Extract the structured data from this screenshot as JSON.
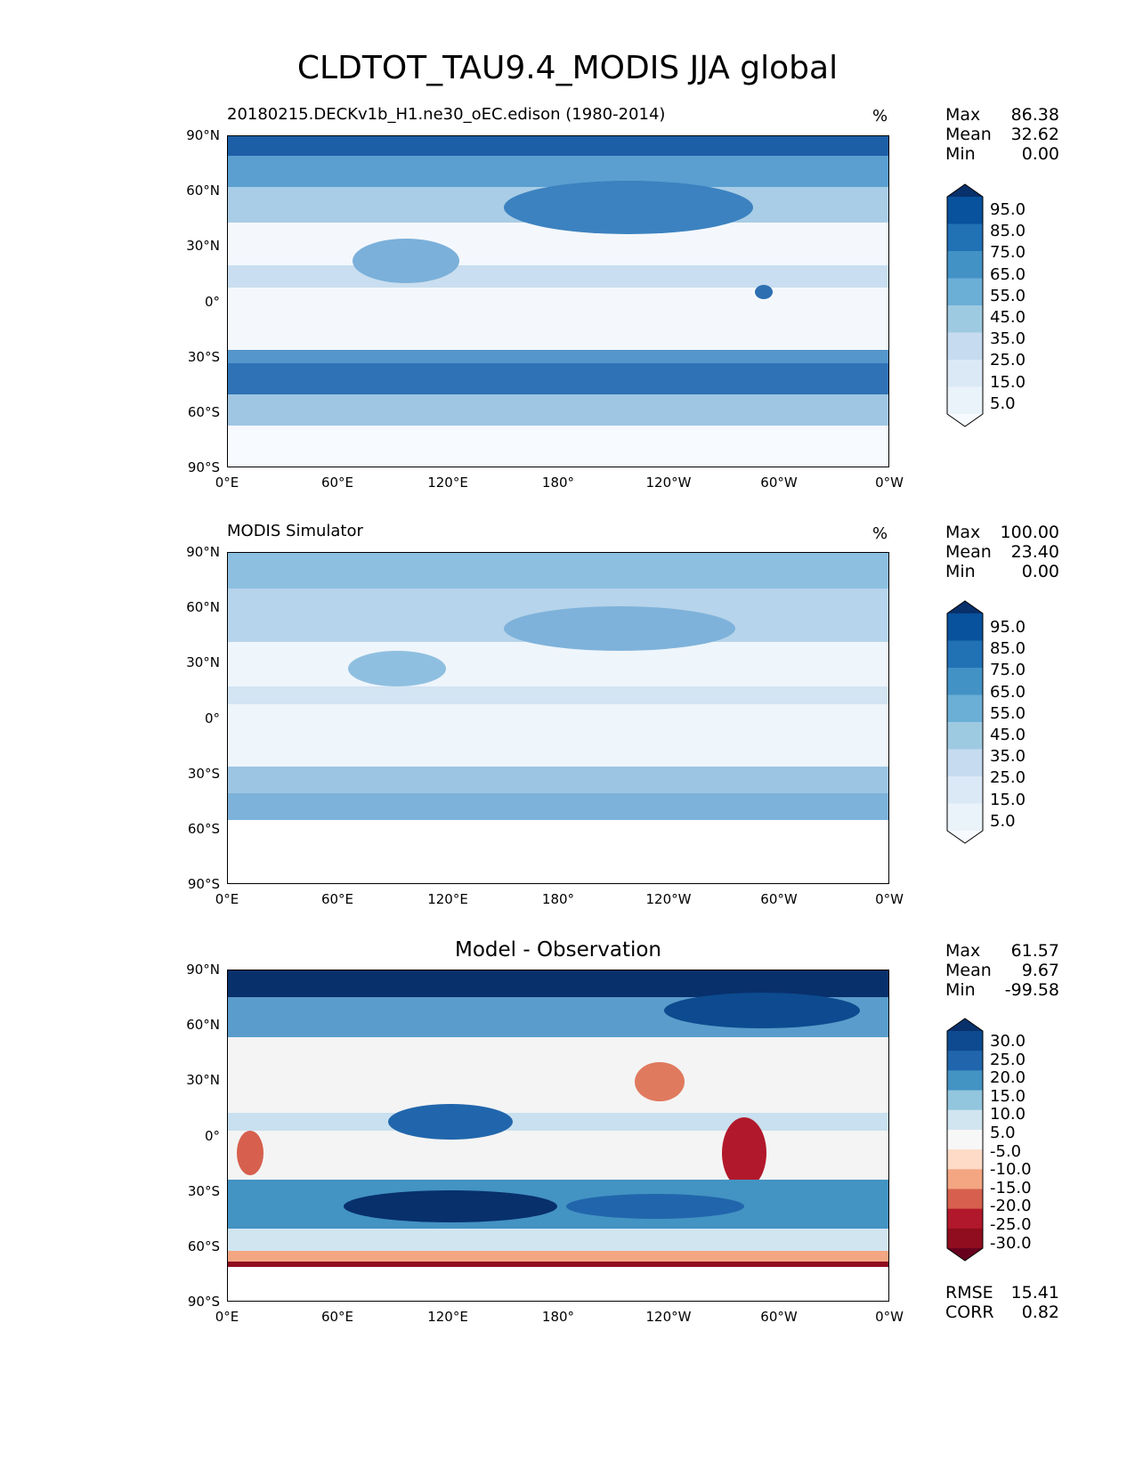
{
  "title": "CLDTOT_TAU9.4_MODIS JJA global",
  "lat_ticks": [
    "90°N",
    "60°N",
    "30°N",
    "0°",
    "30°S",
    "60°S",
    "90°S"
  ],
  "lon_ticks": [
    "0°E",
    "60°E",
    "120°E",
    "180°",
    "120°W",
    "60°W",
    "0°W"
  ],
  "panels": [
    {
      "title_left": "20180215.DECKv1b_H1.ne30_oEC.edison (1980-2014)",
      "title_right": "%",
      "title_center": "",
      "stats": [
        {
          "key": "Max",
          "value": "86.38"
        },
        {
          "key": "Mean",
          "value": "32.62"
        },
        {
          "key": "Min",
          "value": "0.00"
        }
      ],
      "colorbar_labels": [
        "95.0",
        "85.0",
        "75.0",
        "65.0",
        "55.0",
        "45.0",
        "35.0",
        "25.0",
        "15.0",
        "5.0"
      ],
      "colorbar_colors": [
        "#08306b",
        "#08519c",
        "#2171b5",
        "#4292c6",
        "#6baed6",
        "#9ecae1",
        "#c6dbef",
        "#dbe9f6",
        "#eaf2fa",
        "#f7fbff"
      ],
      "extra_stats": []
    },
    {
      "title_left": "MODIS Simulator",
      "title_right": "%",
      "title_center": "",
      "stats": [
        {
          "key": "Max",
          "value": "100.00"
        },
        {
          "key": "Mean",
          "value": "23.40"
        },
        {
          "key": "Min",
          "value": "0.00"
        }
      ],
      "colorbar_labels": [
        "95.0",
        "85.0",
        "75.0",
        "65.0",
        "55.0",
        "45.0",
        "35.0",
        "25.0",
        "15.0",
        "5.0"
      ],
      "colorbar_colors": [
        "#08306b",
        "#08519c",
        "#2171b5",
        "#4292c6",
        "#6baed6",
        "#9ecae1",
        "#c6dbef",
        "#dbe9f6",
        "#eaf2fa",
        "#f7fbff"
      ],
      "extra_stats": []
    },
    {
      "title_left": "",
      "title_right": "",
      "title_center": "Model - Observation",
      "stats": [
        {
          "key": "Max",
          "value": "61.57"
        },
        {
          "key": "Mean",
          "value": "9.67"
        },
        {
          "key": "Min",
          "value": "-99.58"
        }
      ],
      "colorbar_labels": [
        "30.0",
        "25.0",
        "20.0",
        "15.0",
        "10.0",
        "5.0",
        "-5.0",
        "-10.0",
        "-15.0",
        "-20.0",
        "-25.0",
        "-30.0"
      ],
      "colorbar_colors": [
        "#08306b",
        "#0d4a8f",
        "#2166ac",
        "#4393c3",
        "#92c5de",
        "#d1e5f0",
        "#f7f7f7",
        "#fddbc7",
        "#f4a582",
        "#d6604d",
        "#b2182b",
        "#8f0d1e",
        "#67001f"
      ],
      "extra_stats": [
        {
          "key": "RMSE",
          "value": "15.41"
        },
        {
          "key": "CORR",
          "value": "0.82"
        }
      ]
    }
  ]
}
